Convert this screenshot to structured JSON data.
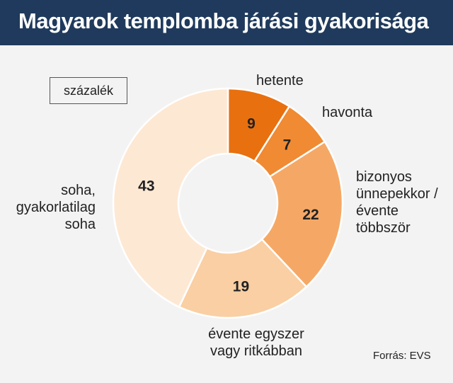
{
  "header": {
    "title": "Magyarok templomba járási gyakorisága"
  },
  "unit_label": "százalék",
  "source": "Forrás: EVS",
  "chart_data": {
    "type": "pie",
    "title": "Magyarok templomba járási gyakorisága",
    "unit": "százalék",
    "donut": true,
    "slices": [
      {
        "label": "hetente",
        "label_lines": [
          "hetente"
        ],
        "value": 9,
        "color": "#e8700f",
        "value_color": "#ffffff"
      },
      {
        "label": "havonta",
        "label_lines": [
          "havonta"
        ],
        "value": 7,
        "color": "#f08a33",
        "value_color": "#ffffff"
      },
      {
        "label": "bizonyos ünnepekkor / évente többször",
        "label_lines": [
          "bizonyos",
          "ünnepekkor /",
          "évente",
          "többször"
        ],
        "value": 22,
        "color": "#f5a865",
        "value_color": "#ffffff"
      },
      {
        "label": "évente egyszer vagy ritkábban",
        "label_lines": [
          "évente egyszer",
          "vagy ritkábban"
        ],
        "value": 19,
        "color": "#f9cfa3",
        "value_color": "#222222"
      },
      {
        "label": "soha, gyakorlatilag soha",
        "label_lines": [
          "soha,",
          "gyakorlatilag",
          "soha"
        ],
        "value": 43,
        "color": "#fde8d4",
        "value_color": "#222222"
      }
    ]
  }
}
